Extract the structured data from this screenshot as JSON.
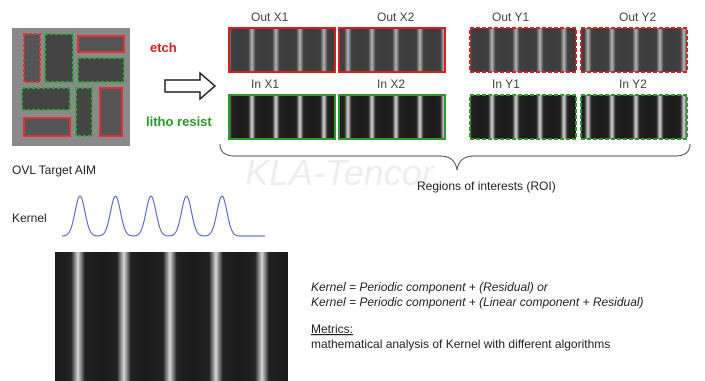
{
  "target": {
    "caption": "OVL Target AIM"
  },
  "labels": {
    "etch": "etch",
    "litho": "litho resist"
  },
  "out_panels": [
    "Out X1",
    "Out X2",
    "Out Y1",
    "Out Y2"
  ],
  "in_panels": [
    "In X1",
    "In X2",
    "In Y1",
    "In Y2"
  ],
  "roi": "Regions of interests (ROI)",
  "watermark": "KLA-Tencor",
  "kernel": {
    "label": "Kernel"
  },
  "notes": {
    "line1": "Kernel = Periodic component + (Residual) or",
    "line2": "Kernel = Periodic component + (Linear component + Residual)",
    "metrics_heading": "Metrics:",
    "metrics_text": "mathematical analysis of Kernel  with different algorithms"
  }
}
